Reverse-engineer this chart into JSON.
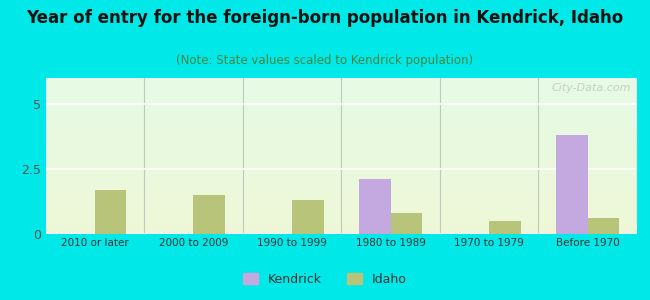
{
  "categories": [
    "2010 or later",
    "2000 to 2009",
    "1990 to 1999",
    "1980 to 1989",
    "1970 to 1979",
    "Before 1970"
  ],
  "kendrick_values": [
    0,
    0,
    0,
    2.1,
    0,
    3.8
  ],
  "idaho_values": [
    1.7,
    1.5,
    1.3,
    0.8,
    0.5,
    0.6
  ],
  "kendrick_color": "#c4a8e0",
  "idaho_color": "#b8c47a",
  "title": "Year of entry for the foreign-born population in Kendrick, Idaho",
  "subtitle": "(Note: State values scaled to Kendrick population)",
  "title_fontsize": 12,
  "subtitle_fontsize": 8.5,
  "title_color": "#111111",
  "subtitle_color": "#448844",
  "background_outer": "#00e8e8",
  "ylim": [
    0,
    6
  ],
  "yticks": [
    0,
    2.5,
    5
  ],
  "bar_width": 0.32,
  "watermark": "City-Data.com"
}
